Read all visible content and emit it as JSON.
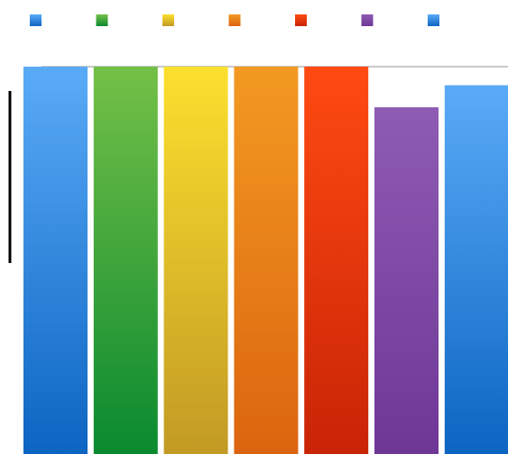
{
  "chart_data": {
    "type": "bar",
    "categories": [
      "",
      "",
      "",
      "",
      "",
      "",
      ""
    ],
    "series": [
      {
        "values": [
          100,
          100,
          100,
          100,
          100,
          89.5,
          95.2
        ],
        "colors": [
          [
            "#5aabf7",
            "#0d65c2"
          ],
          [
            "#74c047",
            "#0a8a30"
          ],
          [
            "#fbe02e",
            "#c29a24"
          ],
          [
            "#f29a22",
            "#dc640f"
          ],
          [
            "#ff4a12",
            "#c82406"
          ],
          [
            "#8e5bb4",
            "#6e3796"
          ],
          [
            "#5aabf7",
            "#0d65c2"
          ]
        ]
      }
    ],
    "legend": {
      "placement": "top",
      "entries": [
        {
          "label": "",
          "color": "#1b7be0"
        },
        {
          "label": "",
          "color": "#1f9a3c"
        },
        {
          "label": "",
          "color": "#e3c21c"
        },
        {
          "label": "",
          "color": "#ef7d14"
        },
        {
          "label": "",
          "color": "#e43412"
        },
        {
          "label": "",
          "color": "#7d48a6"
        },
        {
          "label": "",
          "color": "#1b7be0"
        }
      ]
    },
    "ylim": [
      0,
      100
    ],
    "grid": false,
    "title": "",
    "xlabel": "",
    "ylabel": ""
  }
}
